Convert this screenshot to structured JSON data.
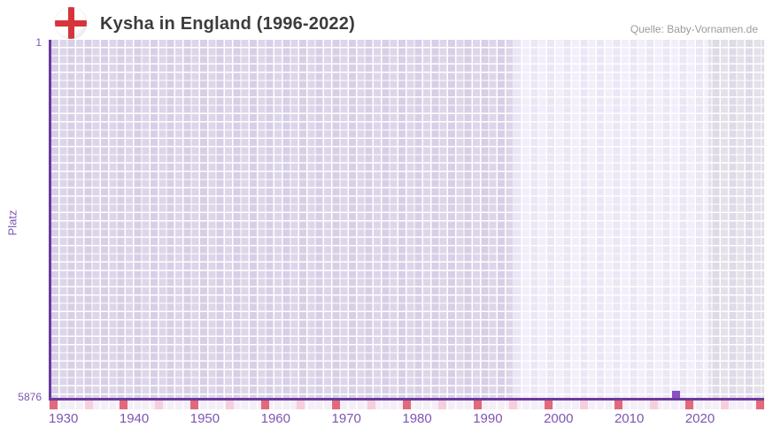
{
  "header": {
    "title": "Kysha in England (1996-2022)",
    "source": "Quelle: Baby-Vornamen.de",
    "flag": "england-flag"
  },
  "y_axis": {
    "title": "Platz",
    "top_label": "1",
    "bottom_label": "5876"
  },
  "x_axis": {
    "tick_years": [
      1930,
      1940,
      1950,
      1960,
      1970,
      1980,
      1990,
      2000,
      2010,
      2020
    ]
  },
  "chart_data": {
    "type": "scatter",
    "title": "Kysha in England (1996-2022)",
    "xlabel": "",
    "ylabel": "Platz",
    "ylim": [
      1,
      5876
    ],
    "y_inverted": true,
    "xlim": [
      1928,
      2029
    ],
    "x_tick_labels": [
      1930,
      1940,
      1950,
      1960,
      1970,
      1980,
      1990,
      2000,
      2010,
      2020
    ],
    "series": [
      {
        "name": "Kysha",
        "points": [
          {
            "year": 2016,
            "rank": 5876
          }
        ]
      }
    ],
    "data_period": {
      "from": 1996,
      "to": 2022
    },
    "grid": true,
    "legend_position": "none",
    "annotations": {
      "decade_ticks": "dark red square below axis every 10 years",
      "half_decade_ticks": "light pink square below axis every 5 years"
    }
  },
  "colors": {
    "axis_line": "#6a3a9d",
    "tick_label": "#7d55b2",
    "title_text": "#3c3c3c",
    "source_text": "#9b9b9b",
    "cell_pre_period": "#ddd6ea",
    "cell_data_period": "#f2eefa",
    "cell_post_period": "#e4e1ea",
    "tick_row_base": "#f4eef6",
    "decade_tick": "#e2697a",
    "half_decade_tick": "#f6cfda",
    "data_point": "#8a50c4",
    "flag_red": "#d5343c"
  }
}
